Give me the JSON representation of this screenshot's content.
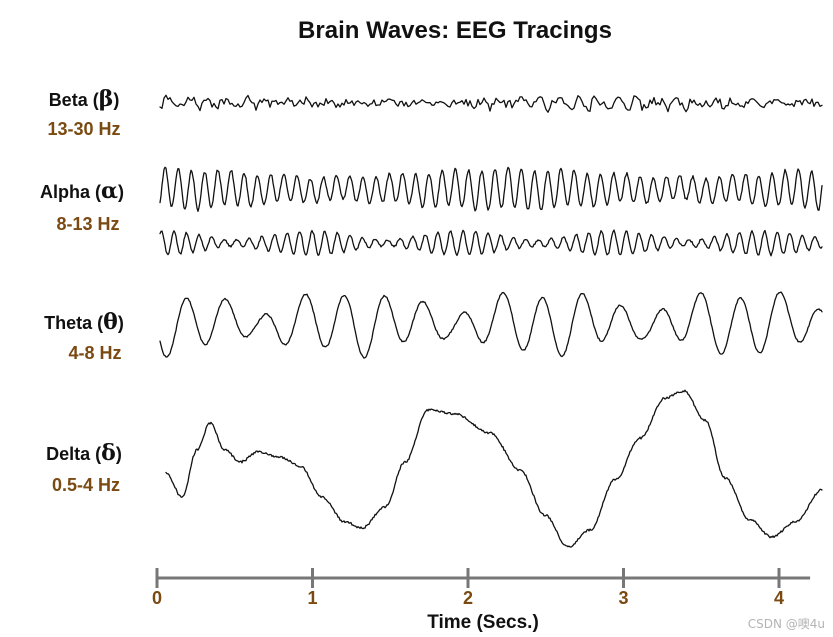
{
  "title": "Brain Waves: EEG Tracings",
  "bands": [
    {
      "id": "beta",
      "name": "Beta",
      "symbol": "β",
      "range": "13-30 Hz",
      "traces": 1
    },
    {
      "id": "alpha",
      "name": "Alpha",
      "symbol": "α",
      "range": "8-13 Hz",
      "traces": 2
    },
    {
      "id": "theta",
      "name": "Theta",
      "symbol": "θ",
      "range": "4-8 Hz",
      "traces": 1
    },
    {
      "id": "delta",
      "name": "Delta",
      "symbol": "δ",
      "range": "0.5-4 Hz",
      "traces": 1
    }
  ],
  "axis": {
    "title": "Time (Secs.)",
    "ticks": [
      "0",
      "1",
      "2",
      "3",
      "4"
    ],
    "range": [
      0,
      4.2
    ],
    "color": "#777777",
    "label_color": "#7a4a12"
  },
  "range_color": "#7a4a12",
  "watermark": "CSDN @噢4u"
}
